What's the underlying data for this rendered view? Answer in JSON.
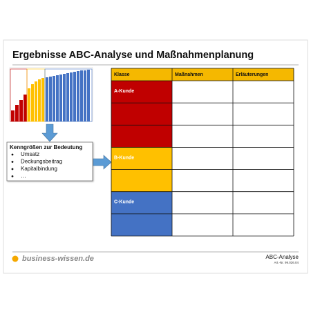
{
  "header": {
    "title": "Ergebnisse ABC-Analyse und Maßnahmenplanung"
  },
  "box": {
    "title": "Kenngrößen zur Bedeutung",
    "items": [
      "Umsatz",
      "Deckungsbeitrag",
      "Kapitalbindung",
      "…"
    ]
  },
  "table": {
    "columns": [
      "Klasse",
      "Maßnahmen",
      "Erläuterungen"
    ],
    "header_color": "#f5b800",
    "groups": [
      {
        "label": "A-Kunde",
        "rows": 3,
        "color": "#c00000",
        "text_color": "#ffffff"
      },
      {
        "label": "B-Kunde",
        "rows": 2,
        "color": "#ffc000",
        "text_color": "#ffffff"
      },
      {
        "label": "C-Kunde",
        "rows": 2,
        "color": "#4472c4",
        "text_color": "#ffffff"
      }
    ]
  },
  "footer": {
    "brand": "business-wissen.de",
    "product": "ABC-Analyse",
    "article": "Art.-Nr. 99.026.04"
  }
}
